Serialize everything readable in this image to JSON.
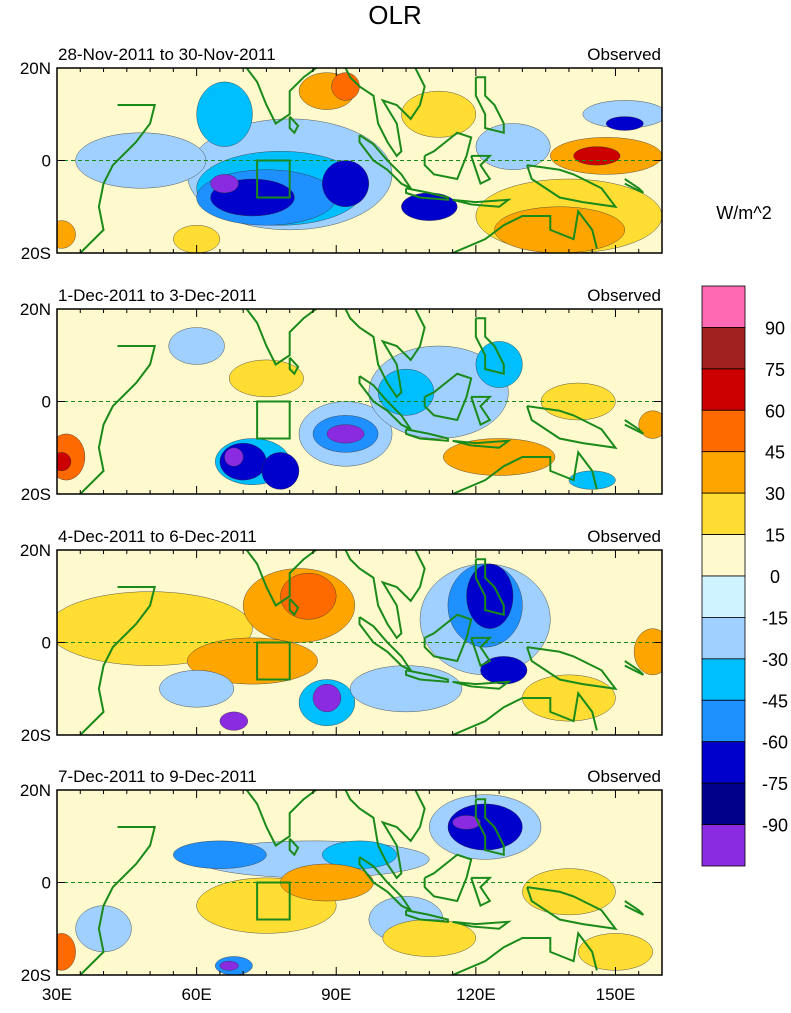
{
  "chart_data": {
    "type": "heatmap",
    "title": "OLR",
    "units": "W/m^2",
    "x_ticks": [
      "30E",
      "60E",
      "90E",
      "120E",
      "150E"
    ],
    "x_tick_values": [
      30,
      60,
      90,
      120,
      150
    ],
    "y_ticks": [
      "20N",
      "0",
      "20S"
    ],
    "y_tick_values": [
      20,
      0,
      -20
    ],
    "xlim": [
      30,
      160
    ],
    "ylim": [
      -20,
      20
    ],
    "colorbar": {
      "levels": [
        "90",
        "75",
        "60",
        "45",
        "30",
        "15",
        "0",
        "-15",
        "-30",
        "-45",
        "-60",
        "-75",
        "-90"
      ],
      "colors": [
        "#ff69b4",
        "#a0211f",
        "#cc0000",
        "#ff6a00",
        "#ffa500",
        "#ffdd33",
        "#fffacd",
        "#d0f4ff",
        "#a0d0ff",
        "#00bfff",
        "#1e90ff",
        "#0000cd",
        "#00008b",
        "#8a2be2"
      ]
    },
    "panels": [
      {
        "period": "28-Nov-2011 to 30-Nov-2011",
        "label": "Observed"
      },
      {
        "period": "1-Dec-2011 to 3-Dec-2011",
        "label": "Observed"
      },
      {
        "period": "4-Dec-2011 to 6-Dec-2011",
        "label": "Observed"
      },
      {
        "period": "7-Dec-2011 to 9-Dec-2011",
        "label": "Observed"
      }
    ]
  }
}
